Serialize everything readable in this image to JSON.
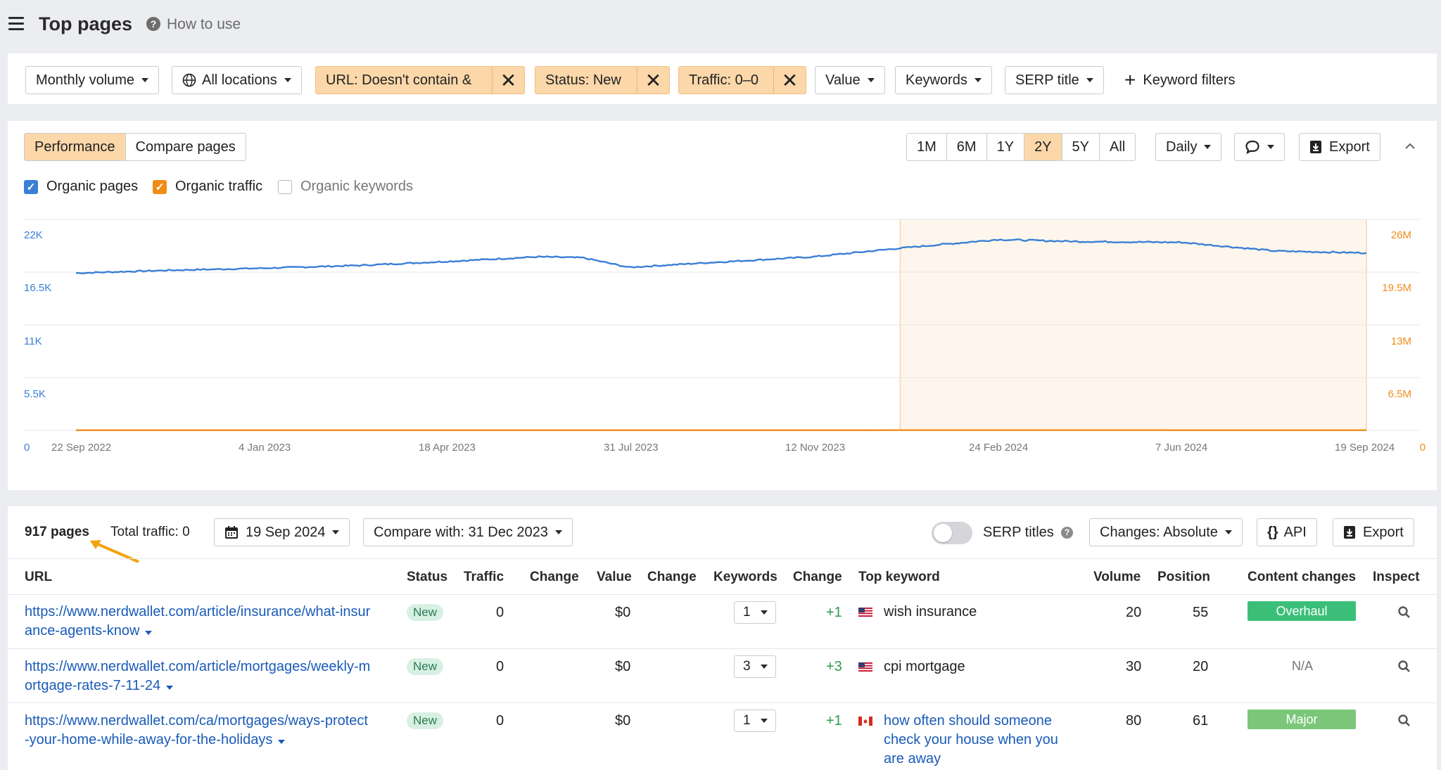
{
  "header": {
    "title": "Top pages",
    "help_label": "How to use"
  },
  "filters": {
    "monthly_volume": "Monthly volume",
    "locations": "All locations",
    "chip_url": "URL: Doesn't contain &",
    "chip_status": "Status: New",
    "chip_traffic": "Traffic: 0–0",
    "value": "Value",
    "keywords": "Keywords",
    "serp_title": "SERP title",
    "keyword_filters": "Keyword filters"
  },
  "chart_toolbar": {
    "tabs": [
      "Performance",
      "Compare pages"
    ],
    "ranges": [
      "1M",
      "6M",
      "1Y",
      "2Y",
      "5Y",
      "All"
    ],
    "active_range": "2Y",
    "interval": "Daily",
    "export": "Export"
  },
  "legend": {
    "organic_pages": "Organic pages",
    "organic_traffic": "Organic traffic",
    "organic_keywords": "Organic keywords"
  },
  "colors": {
    "pages": "#3a7fd5",
    "traffic": "#f08c1a",
    "highlight": "#fef6ec",
    "chip": "#fbd7a9"
  },
  "chart_data": {
    "type": "line",
    "x_ticks": [
      "22 Sep 2022",
      "4 Jan 2023",
      "18 Apr 2023",
      "31 Jul 2023",
      "12 Nov 2023",
      "24 Feb 2024",
      "7 Jun 2024",
      "19 Sep 2024"
    ],
    "y_left_ticks": [
      "22K",
      "16.5K",
      "11K",
      "5.5K",
      "0"
    ],
    "y_right_ticks": [
      "26M",
      "19.5M",
      "13M",
      "6.5M",
      "0"
    ],
    "ylim_left": [
      0,
      22000
    ],
    "ylim_right": [
      0,
      26000000
    ],
    "highlight_from": "31 Dec 2023",
    "series": [
      {
        "name": "Organic pages",
        "axis": "left",
        "x": [
          "22 Sep 2022",
          "15 Nov 2022",
          "4 Jan 2023",
          "1 Mar 2023",
          "18 Apr 2023",
          "10 Jun 2023",
          "5 Jul 2023",
          "31 Jul 2023",
          "15 Sep 2023",
          "12 Nov 2023",
          "31 Dec 2023",
          "24 Feb 2024",
          "7 Apr 2024",
          "7 Jun 2024",
          "30 Jul 2024",
          "19 Sep 2024"
        ],
        "values": [
          16400,
          16700,
          16900,
          17200,
          17600,
          18100,
          18000,
          17000,
          17500,
          18100,
          19000,
          19900,
          19700,
          19600,
          18700,
          18500
        ]
      },
      {
        "name": "Organic traffic",
        "axis": "right",
        "x": [
          "22 Sep 2022",
          "15 Nov 2022",
          "4 Jan 2023",
          "10 Feb 2023",
          "18 Apr 2023",
          "20 May 2023",
          "31 Jul 2023",
          "12 Sep 2023",
          "30 Sep 2023",
          "12 Nov 2023",
          "30 Dec 2023",
          "20 Jan 2024",
          "24 Feb 2024",
          "15 Apr 2024",
          "22 May 2024",
          "7 Jun 2024",
          "15 Jul 2024",
          "15 Aug 2024",
          "19 Sep 2024"
        ],
        "values": [
          14300,
          15300,
          14500,
          16000,
          18800,
          16500,
          18000,
          20400,
          20000,
          19800,
          22500,
          24800,
          24500,
          25000,
          24000,
          20000,
          20200,
          17800,
          14900
        ]
      }
    ]
  },
  "table_toolbar": {
    "pages_count": "917 pages",
    "total_traffic": "Total traffic: 0",
    "date": "19 Sep 2024",
    "compare": "Compare with: 31 Dec 2023",
    "serp_titles": "SERP titles",
    "changes": "Changes: Absolute",
    "api": "API",
    "export": "Export"
  },
  "columns": [
    "URL",
    "Status",
    "Traffic",
    "Change",
    "Value",
    "Change",
    "Keywords",
    "Change",
    "Top keyword",
    "Volume",
    "Position",
    "Content changes",
    "Inspect"
  ],
  "rows": [
    {
      "url_line1": "https://www.nerdwallet.com/article/insurance/what-insur",
      "url_line2": "ance-agents-know",
      "status": "New",
      "traffic": "0",
      "value": "$0",
      "keywords": "1",
      "kw_change": "+1",
      "country": "US",
      "top_keyword": "wish insurance",
      "top_keyword_l2": "",
      "top_keyword_l3": "",
      "volume": "20",
      "position": "55",
      "content_change": "Overhaul",
      "content_color": "#3bbf78"
    },
    {
      "url_line1": "https://www.nerdwallet.com/article/mortgages/weekly-m",
      "url_line2": "ortgage-rates-7-11-24",
      "status": "New",
      "traffic": "0",
      "value": "$0",
      "keywords": "3",
      "kw_change": "+3",
      "country": "US",
      "top_keyword": "cpi mortgage",
      "top_keyword_l2": "",
      "top_keyword_l3": "",
      "volume": "30",
      "position": "20",
      "content_change": "N/A",
      "content_color": ""
    },
    {
      "url_line1": "https://www.nerdwallet.com/ca/mortgages/ways-protect",
      "url_line2": "-your-home-while-away-for-the-holidays",
      "status": "New",
      "traffic": "0",
      "value": "$0",
      "keywords": "1",
      "kw_change": "+1",
      "country": "CA",
      "top_keyword": "how often should someone",
      "top_keyword_l2": "check your house when you",
      "top_keyword_l3": "are away",
      "volume": "80",
      "position": "61",
      "content_change": "Major",
      "content_color": "#7cc67a"
    }
  ]
}
